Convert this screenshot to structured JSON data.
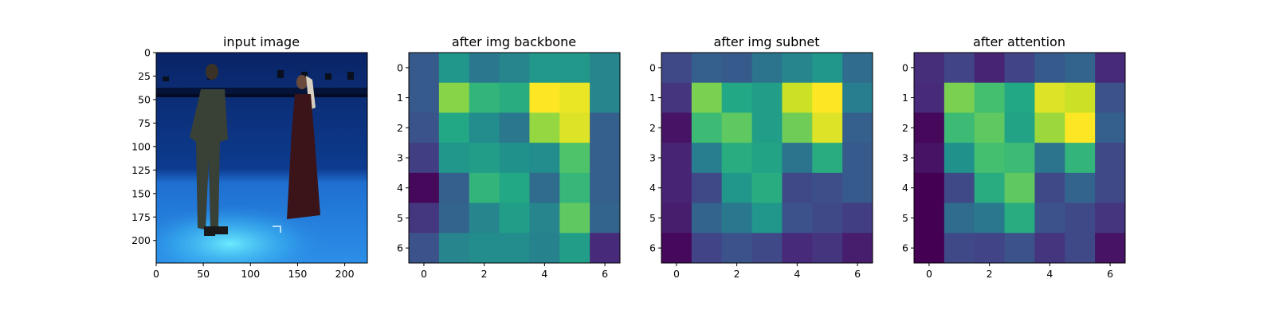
{
  "chart_data": [
    {
      "type": "image",
      "title": "input image",
      "xticks": [
        0,
        50,
        100,
        150,
        200
      ],
      "yticks": [
        0,
        25,
        50,
        75,
        100,
        125,
        150,
        175,
        200
      ],
      "xlim": [
        0,
        224
      ],
      "ylim": [
        224,
        0
      ],
      "colors": {
        "backdrop": "#0b2a6e",
        "floor": "#2f8fe0",
        "floor_light": "#5ee0ff"
      }
    },
    {
      "type": "heatmap",
      "title": "after img backbone",
      "xticks": [
        0,
        2,
        4,
        6
      ],
      "yticks": [
        0,
        1,
        2,
        3,
        4,
        5,
        6
      ],
      "colormap": "viridis",
      "values": [
        [
          0.28,
          0.52,
          0.4,
          0.45,
          0.53,
          0.53,
          0.45
        ],
        [
          0.28,
          0.82,
          0.65,
          0.62,
          1.0,
          0.97,
          0.45
        ],
        [
          0.26,
          0.6,
          0.48,
          0.4,
          0.84,
          0.95,
          0.3
        ],
        [
          0.18,
          0.52,
          0.55,
          0.5,
          0.48,
          0.72,
          0.3
        ],
        [
          0.02,
          0.3,
          0.65,
          0.6,
          0.35,
          0.66,
          0.3
        ],
        [
          0.16,
          0.32,
          0.45,
          0.55,
          0.45,
          0.75,
          0.32
        ],
        [
          0.25,
          0.45,
          0.48,
          0.48,
          0.44,
          0.55,
          0.12
        ]
      ]
    },
    {
      "type": "heatmap",
      "title": "after img subnet",
      "xticks": [
        0,
        2,
        4,
        6
      ],
      "yticks": [
        0,
        1,
        2,
        3,
        4,
        5,
        6
      ],
      "colormap": "viridis",
      "values": [
        [
          0.22,
          0.3,
          0.28,
          0.38,
          0.45,
          0.52,
          0.35
        ],
        [
          0.15,
          0.8,
          0.6,
          0.55,
          0.92,
          1.0,
          0.42
        ],
        [
          0.05,
          0.68,
          0.75,
          0.55,
          0.78,
          0.95,
          0.3
        ],
        [
          0.1,
          0.42,
          0.62,
          0.58,
          0.38,
          0.62,
          0.28
        ],
        [
          0.1,
          0.22,
          0.52,
          0.62,
          0.22,
          0.24,
          0.28
        ],
        [
          0.08,
          0.32,
          0.4,
          0.52,
          0.25,
          0.22,
          0.18
        ],
        [
          0.02,
          0.2,
          0.25,
          0.22,
          0.12,
          0.15,
          0.08
        ]
      ]
    },
    {
      "type": "heatmap",
      "title": "after attention",
      "xticks": [
        0,
        2,
        4,
        6
      ],
      "yticks": [
        0,
        1,
        2,
        3,
        4,
        5,
        6
      ],
      "colormap": "viridis",
      "values": [
        [
          0.13,
          0.2,
          0.1,
          0.2,
          0.28,
          0.32,
          0.12
        ],
        [
          0.12,
          0.8,
          0.7,
          0.6,
          0.95,
          0.92,
          0.25
        ],
        [
          0.02,
          0.68,
          0.75,
          0.58,
          0.85,
          1.0,
          0.3
        ],
        [
          0.05,
          0.5,
          0.7,
          0.68,
          0.38,
          0.65,
          0.22
        ],
        [
          0.0,
          0.22,
          0.62,
          0.75,
          0.22,
          0.32,
          0.22
        ],
        [
          0.0,
          0.35,
          0.4,
          0.62,
          0.25,
          0.22,
          0.15
        ],
        [
          0.0,
          0.22,
          0.2,
          0.25,
          0.15,
          0.22,
          0.05
        ]
      ]
    }
  ]
}
